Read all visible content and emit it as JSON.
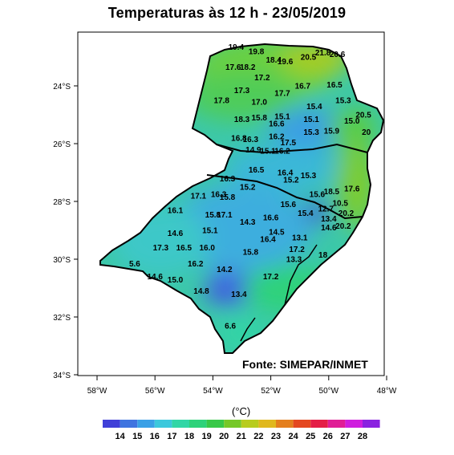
{
  "title": "Temperaturas  às  12 h -  23/05/2019",
  "source": "Fonte: SIMEPAR/INMET",
  "unit": "(°C)",
  "lon_ticks": [
    "58°W",
    "56°W",
    "54°W",
    "52°W",
    "50°W",
    "48°W"
  ],
  "lat_ticks": [
    "24°S",
    "26°S",
    "28°S",
    "30°S",
    "32°S",
    "34°S"
  ],
  "colorbar": {
    "labels": [
      "14",
      "15",
      "16",
      "17",
      "18",
      "19",
      "20",
      "21",
      "22",
      "23",
      "24",
      "25",
      "26",
      "27",
      "28"
    ],
    "colors": [
      "#4040d8",
      "#3f74e0",
      "#3aa0e6",
      "#3cc8dc",
      "#32d6a6",
      "#2ed27a",
      "#38c848",
      "#76c828",
      "#b8cc1e",
      "#e0b81e",
      "#e47f1e",
      "#e44820",
      "#e41e46",
      "#e01e96",
      "#cf1ede",
      "#8a22e0"
    ]
  },
  "stations": [
    {
      "v": "19.4",
      "lon": -53.2,
      "lat": -22.75
    },
    {
      "v": "19.8",
      "lon": -52.5,
      "lat": -22.9
    },
    {
      "v": "21.8",
      "lon": -50.2,
      "lat": -22.95
    },
    {
      "v": "20.6",
      "lon": -49.7,
      "lat": -23.0
    },
    {
      "v": "20.5",
      "lon": -50.7,
      "lat": -23.1
    },
    {
      "v": "18.4",
      "lon": -51.9,
      "lat": -23.2
    },
    {
      "v": "19.6",
      "lon": -51.5,
      "lat": -23.25
    },
    {
      "v": "17.6",
      "lon": -53.3,
      "lat": -23.45
    },
    {
      "v": "18.2",
      "lon": -52.8,
      "lat": -23.45
    },
    {
      "v": "17.2",
      "lon": -52.3,
      "lat": -23.8
    },
    {
      "v": "16.7",
      "lon": -50.9,
      "lat": -24.1
    },
    {
      "v": "16.5",
      "lon": -49.8,
      "lat": -24.05
    },
    {
      "v": "17.3",
      "lon": -53.0,
      "lat": -24.25
    },
    {
      "v": "17.7",
      "lon": -51.6,
      "lat": -24.35
    },
    {
      "v": "17.8",
      "lon": -53.7,
      "lat": -24.6
    },
    {
      "v": "17.0",
      "lon": -52.4,
      "lat": -24.65
    },
    {
      "v": "15.3",
      "lon": -49.5,
      "lat": -24.6
    },
    {
      "v": "15.4",
      "lon": -50.5,
      "lat": -24.8
    },
    {
      "v": "20.5",
      "lon": -48.8,
      "lat": -25.1
    },
    {
      "v": "15.1",
      "lon": -51.6,
      "lat": -25.15
    },
    {
      "v": "18.3",
      "lon": -53.0,
      "lat": -25.25
    },
    {
      "v": "15.8",
      "lon": -52.4,
      "lat": -25.2
    },
    {
      "v": "16.6",
      "lon": -51.8,
      "lat": -25.4
    },
    {
      "v": "15.1",
      "lon": -50.6,
      "lat": -25.25
    },
    {
      "v": "15.0",
      "lon": -49.2,
      "lat": -25.3
    },
    {
      "v": "16.2",
      "lon": -51.8,
      "lat": -25.85
    },
    {
      "v": "15.3",
      "lon": -50.6,
      "lat": -25.7
    },
    {
      "v": "15.9",
      "lon": -49.9,
      "lat": -25.65
    },
    {
      "v": "20",
      "lon": -48.7,
      "lat": -25.7
    },
    {
      "v": "16.8",
      "lon": -53.1,
      "lat": -25.9
    },
    {
      "v": "16.3",
      "lon": -52.7,
      "lat": -25.95
    },
    {
      "v": "17.5",
      "lon": -51.4,
      "lat": -26.05
    },
    {
      "v": "14.9",
      "lon": -52.6,
      "lat": -26.3
    },
    {
      "v": "15.1",
      "lon": -52.1,
      "lat": -26.35
    },
    {
      "v": "16.2",
      "lon": -51.6,
      "lat": -26.35
    },
    {
      "v": "16.5",
      "lon": -52.5,
      "lat": -27.0
    },
    {
      "v": "16.4",
      "lon": -51.5,
      "lat": -27.1
    },
    {
      "v": "15.3",
      "lon": -50.7,
      "lat": -27.2
    },
    {
      "v": "15.2",
      "lon": -51.3,
      "lat": -27.35
    },
    {
      "v": "16.3",
      "lon": -53.5,
      "lat": -27.3
    },
    {
      "v": "15.2",
      "lon": -52.8,
      "lat": -27.6
    },
    {
      "v": "18.5",
      "lon": -49.9,
      "lat": -27.75
    },
    {
      "v": "15.6",
      "lon": -50.4,
      "lat": -27.85
    },
    {
      "v": "17.6",
      "lon": -49.2,
      "lat": -27.65
    },
    {
      "v": "17.1",
      "lon": -54.5,
      "lat": -27.9
    },
    {
      "v": "16.3",
      "lon": -53.8,
      "lat": -27.85
    },
    {
      "v": "15.8",
      "lon": -53.5,
      "lat": -27.95
    },
    {
      "v": "15.6",
      "lon": -51.4,
      "lat": -28.2
    },
    {
      "v": "10.5",
      "lon": -49.6,
      "lat": -28.15
    },
    {
      "v": "12.7",
      "lon": -50.1,
      "lat": -28.35
    },
    {
      "v": "15.4",
      "lon": -50.8,
      "lat": -28.5
    },
    {
      "v": "20.2",
      "lon": -49.4,
      "lat": -28.5
    },
    {
      "v": "16.1",
      "lon": -55.3,
      "lat": -28.4
    },
    {
      "v": "15.8",
      "lon": -54.0,
      "lat": -28.55
    },
    {
      "v": "17.1",
      "lon": -53.6,
      "lat": -28.55
    },
    {
      "v": "14.3",
      "lon": -52.8,
      "lat": -28.8
    },
    {
      "v": "16.6",
      "lon": -52.0,
      "lat": -28.65
    },
    {
      "v": "13.4",
      "lon": -50.0,
      "lat": -28.7
    },
    {
      "v": "14.6",
      "lon": -50.0,
      "lat": -29.0
    },
    {
      "v": "20.2",
      "lon": -49.5,
      "lat": -28.95
    },
    {
      "v": "14.6",
      "lon": -55.3,
      "lat": -29.2
    },
    {
      "v": "15.1",
      "lon": -54.1,
      "lat": -29.1
    },
    {
      "v": "14.5",
      "lon": -51.8,
      "lat": -29.15
    },
    {
      "v": "16.4",
      "lon": -52.1,
      "lat": -29.4
    },
    {
      "v": "13.1",
      "lon": -51.0,
      "lat": -29.35
    },
    {
      "v": "17.3",
      "lon": -55.8,
      "lat": -29.7
    },
    {
      "v": "16.5",
      "lon": -55.0,
      "lat": -29.7
    },
    {
      "v": "16.0",
      "lon": -54.2,
      "lat": -29.7
    },
    {
      "v": "15.8",
      "lon": -52.7,
      "lat": -29.85
    },
    {
      "v": "17.2",
      "lon": -51.1,
      "lat": -29.75
    },
    {
      "v": "18",
      "lon": -50.2,
      "lat": -29.95
    },
    {
      "v": "13.3",
      "lon": -51.2,
      "lat": -30.1
    },
    {
      "v": "16.2",
      "lon": -54.6,
      "lat": -30.25
    },
    {
      "v": "14.2",
      "lon": -53.6,
      "lat": -30.45
    },
    {
      "v": "5.6",
      "lon": -56.7,
      "lat": -30.25
    },
    {
      "v": "14.6",
      "lon": -56.0,
      "lat": -30.7
    },
    {
      "v": "15.0",
      "lon": -55.3,
      "lat": -30.8
    },
    {
      "v": "17.2",
      "lon": -52.0,
      "lat": -30.7
    },
    {
      "v": "14.8",
      "lon": -54.4,
      "lat": -31.2
    },
    {
      "v": "13.4",
      "lon": -53.1,
      "lat": -31.3
    },
    {
      "v": "6.6",
      "lon": -53.4,
      "lat": -32.4
    }
  ]
}
